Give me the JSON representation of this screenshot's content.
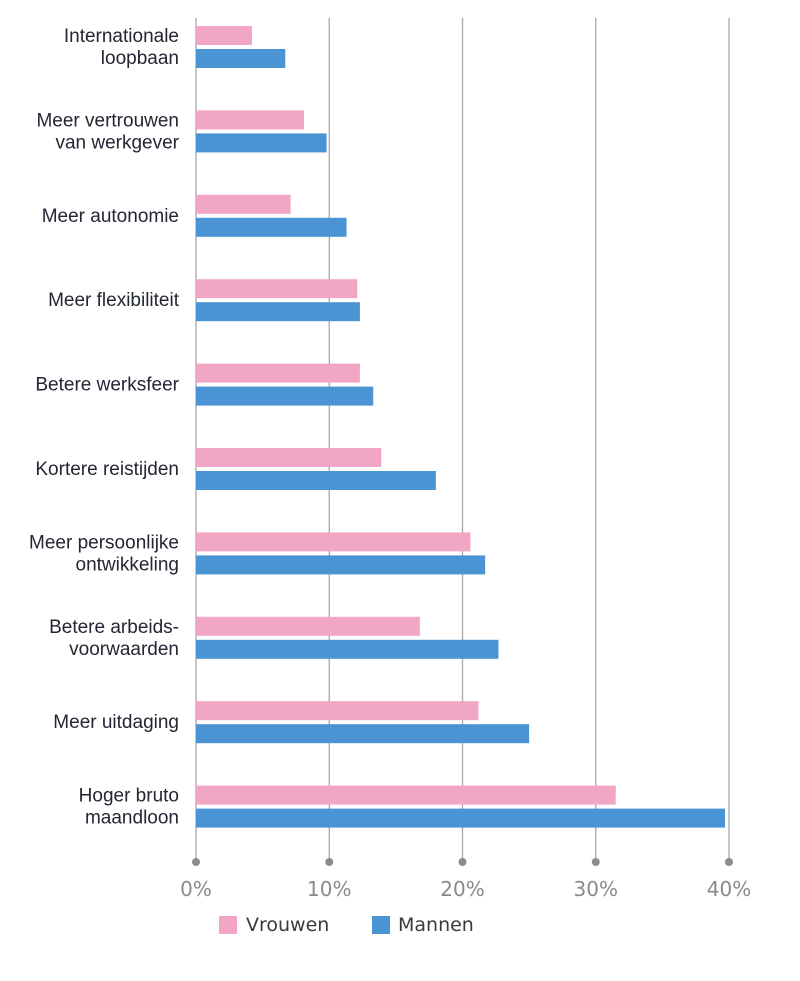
{
  "chart_data": {
    "type": "bar",
    "orientation": "horizontal",
    "categories": [
      [
        "Internationale",
        "loopbaan"
      ],
      [
        "Meer vertrouwen",
        "van werkgever"
      ],
      [
        "Meer autonomie"
      ],
      [
        "Meer flexibiliteit"
      ],
      [
        "Betere werksfeer"
      ],
      [
        "Kortere reistijden"
      ],
      [
        "Meer persoonlijke",
        "ontwikkeling"
      ],
      [
        "Betere arbeids-",
        "voorwaarden"
      ],
      [
        "Meer uitdaging"
      ],
      [
        "Hoger bruto",
        "maandloon"
      ]
    ],
    "series": [
      {
        "name": "Vrouwen",
        "color": "#f2a6c5",
        "values": [
          4.2,
          8.1,
          7.1,
          12.1,
          12.3,
          13.9,
          20.6,
          16.8,
          21.2,
          31.5
        ]
      },
      {
        "name": "Mannen",
        "color": "#4a94d4",
        "values": [
          6.7,
          9.8,
          11.3,
          12.3,
          13.3,
          18.0,
          21.7,
          22.7,
          25.0,
          39.7
        ]
      }
    ],
    "xlim": [
      0,
      40
    ],
    "ticks": [
      "0%",
      "10%",
      "20%",
      "30%",
      "40%"
    ],
    "tick_values": [
      0,
      10,
      20,
      30,
      40
    ],
    "grid": true,
    "legend_position": "bottom-left",
    "gridline_color": "#a8a8a8",
    "axis_dot_color": "#8c8c8c"
  }
}
